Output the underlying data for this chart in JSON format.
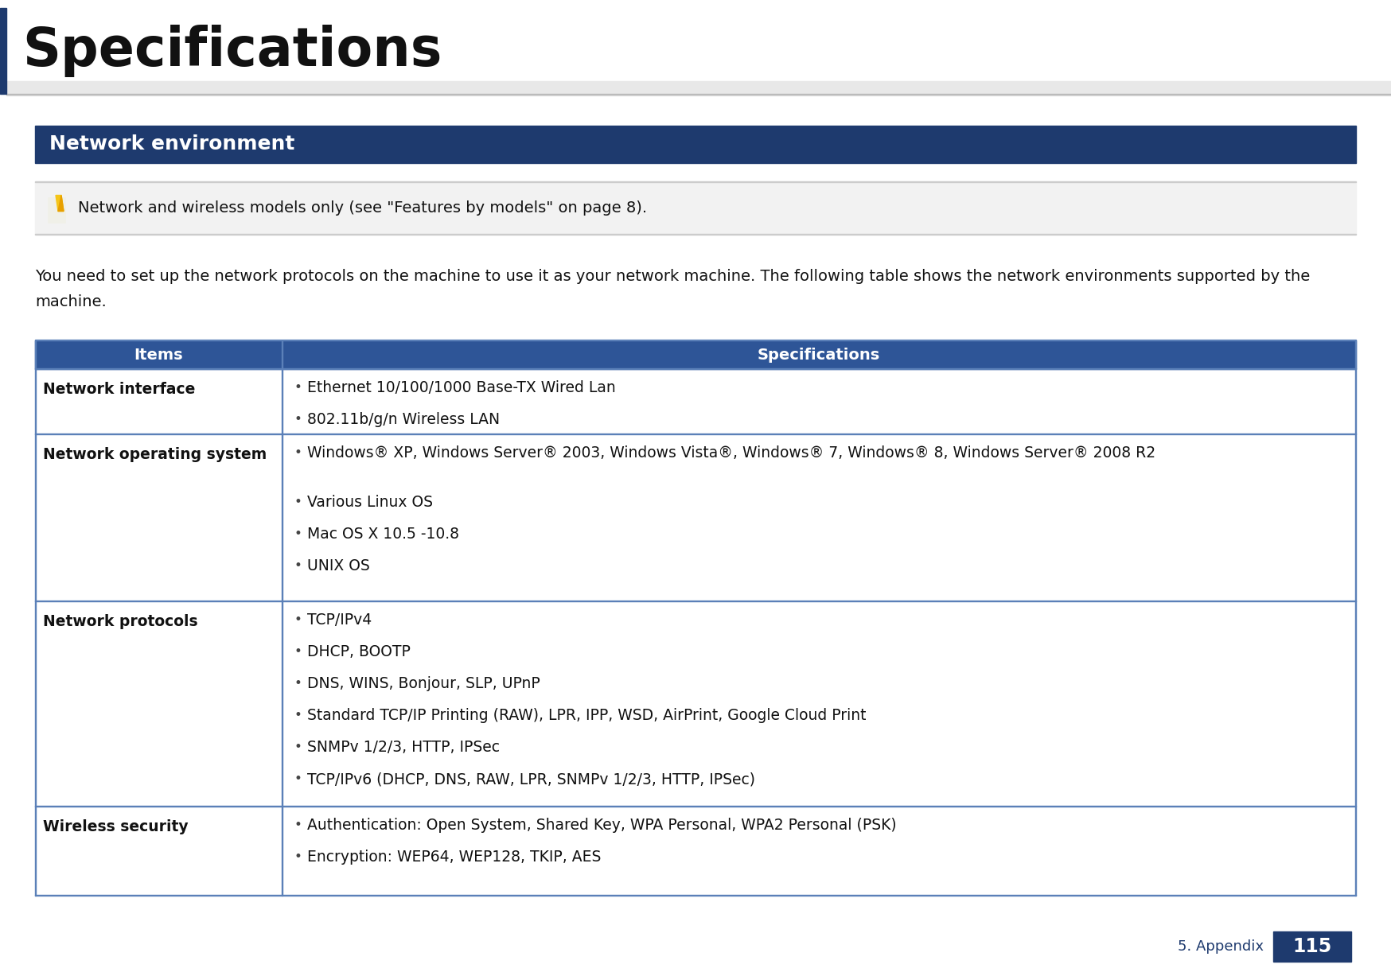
{
  "page_title": "Specifications",
  "section_title": "Network environment",
  "note_text": "Network and wireless models only (see \"Features by models\" on page 8).",
  "intro_text": "You need to set up the network protocols on the machine to use it as your network machine. The following table shows the network environments supported by the machine.",
  "table_header": [
    "Items",
    "Specifications"
  ],
  "table_rows": [
    {
      "item": "Network interface",
      "specs": [
        "Ethernet 10/100/1000 Base-TX Wired Lan",
        "802.11b/g/n Wireless LAN"
      ],
      "spec_lines": [
        1,
        1
      ]
    },
    {
      "item": "Network operating system",
      "specs": [
        "Windows® XP, Windows Server® 2003, Windows Vista®, Windows® 7, Windows® 8, Windows Server® 2008 R2",
        "Various Linux OS",
        "Mac OS X 10.5 -10.8",
        "UNIX OS"
      ],
      "spec_lines": [
        2,
        1,
        1,
        1
      ]
    },
    {
      "item": "Network protocols",
      "specs": [
        "TCP/IPv4",
        "DHCP, BOOTP",
        "DNS, WINS, Bonjour, SLP, UPnP",
        "Standard TCP/IP Printing (RAW), LPR, IPP, WSD, AirPrint, Google Cloud Print",
        "SNMPv 1/2/3, HTTP, IPSec",
        "TCP/IPv6 (DHCP, DNS, RAW, LPR, SNMPv 1/2/3, HTTP, IPSec)"
      ],
      "spec_lines": [
        1,
        1,
        1,
        1,
        1,
        1
      ]
    },
    {
      "item": "Wireless security",
      "specs": [
        "Authentication: Open System, Shared Key, WPA Personal, WPA2 Personal (PSK)",
        "Encryption: WEP64, WEP128, TKIP, AES"
      ],
      "spec_lines": [
        1,
        1
      ]
    }
  ],
  "footer_text": "5. Appendix",
  "page_number": "115",
  "bg_color": "#ffffff",
  "title_bar_color": "#1e3a6e",
  "title_text_color": "#ffffff",
  "header_bg_color": "#2e5597",
  "header_text_color": "#ffffff",
  "table_border_color": "#5b80b8",
  "note_bg_color": "#f0f0f0",
  "left_bar_color": "#1e3a6e",
  "page_num_bg": "#1e3a6e",
  "page_num_text": "#ffffff",
  "shadow_color": "#cccccc"
}
